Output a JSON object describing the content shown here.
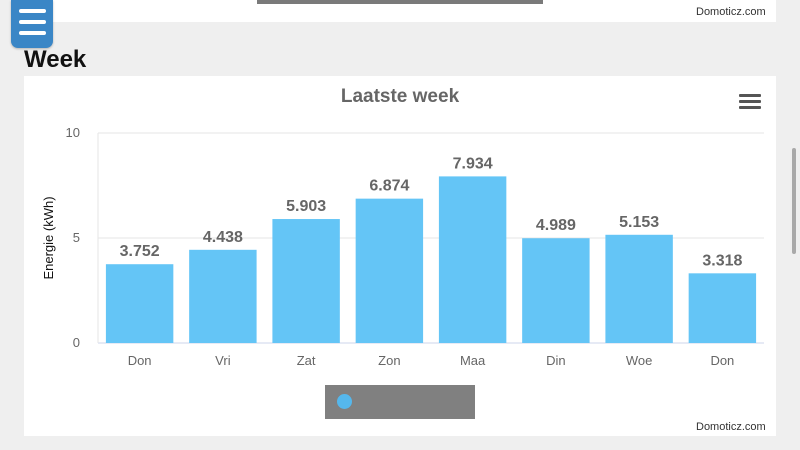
{
  "header": {
    "credit": "Domoticz.com"
  },
  "menu_icon": "hamburger-menu-icon",
  "section": {
    "title": "Week"
  },
  "chart_card": {
    "title": "Laatste week",
    "menu_icon": "hamburger-menu-icon",
    "credit": "Domoticz.com",
    "legend_label": ""
  },
  "colors": {
    "bar": "#64c5f6",
    "legend_dot": "#55b7ec",
    "menu_button": "#3a86c6"
  },
  "chart_data": {
    "type": "bar",
    "title": "Laatste week",
    "xlabel": "",
    "ylabel": "Energie (kWh)",
    "ylim": [
      0,
      10
    ],
    "yticks": [
      0,
      5,
      10
    ],
    "categories": [
      "Don",
      "Vri",
      "Zat",
      "Zon",
      "Maa",
      "Din",
      "Woe",
      "Don"
    ],
    "series": [
      {
        "values": [
          3.752,
          4.438,
          5.903,
          6.874,
          7.934,
          4.989,
          5.153,
          3.318
        ]
      }
    ],
    "data_labels": [
      "3.752",
      "4.438",
      "5.903",
      "6.874",
      "7.934",
      "4.989",
      "5.153",
      "3.318"
    ],
    "grid": true,
    "legend": "bottom-center"
  }
}
